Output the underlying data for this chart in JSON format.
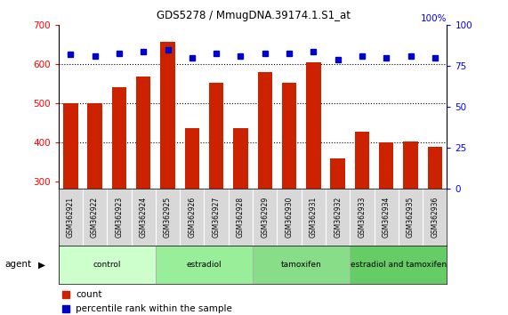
{
  "title": "GDS5278 / MmugDNA.39174.1.S1_at",
  "samples": [
    "GSM362921",
    "GSM362922",
    "GSM362923",
    "GSM362924",
    "GSM362925",
    "GSM362926",
    "GSM362927",
    "GSM362928",
    "GSM362929",
    "GSM362930",
    "GSM362931",
    "GSM362932",
    "GSM362933",
    "GSM362934",
    "GSM362935",
    "GSM362936"
  ],
  "counts": [
    500,
    500,
    540,
    568,
    658,
    437,
    552,
    436,
    580,
    552,
    605,
    358,
    428,
    400,
    402,
    388
  ],
  "percentiles": [
    82,
    81,
    83,
    84,
    85,
    80,
    83,
    81,
    83,
    83,
    84,
    79,
    81,
    80,
    81,
    80
  ],
  "groups": [
    {
      "name": "control",
      "start": 0,
      "end": 4,
      "color": "#ccffcc"
    },
    {
      "name": "estradiol",
      "start": 4,
      "end": 8,
      "color": "#99ee99"
    },
    {
      "name": "tamoxifen",
      "start": 8,
      "end": 12,
      "color": "#88dd88"
    },
    {
      "name": "estradiol and tamoxifen",
      "start": 12,
      "end": 16,
      "color": "#66cc66"
    }
  ],
  "bar_color": "#cc2200",
  "dot_color": "#0000cc",
  "ylim_left": [
    280,
    700
  ],
  "ylim_right": [
    0,
    100
  ],
  "yticks_left": [
    300,
    400,
    500,
    600,
    700
  ],
  "yticks_right": [
    0,
    25,
    50,
    75,
    100
  ],
  "grid_values": [
    400,
    500,
    600
  ],
  "bar_width": 0.6,
  "fig_width": 5.71,
  "fig_height": 3.54,
  "dpi": 100
}
